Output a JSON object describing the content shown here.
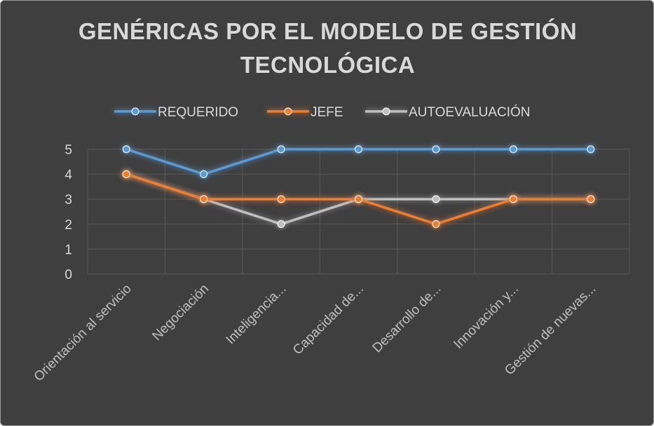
{
  "chart_data": {
    "type": "line",
    "title_lines": [
      "GENÉRICAS POR EL MODELO DE GESTIÓN",
      "TECNOLÓGICA"
    ],
    "categories": [
      "Orientación al servicio",
      "Negociación",
      "Inteligencia...",
      "Capacidad de...",
      "Desarrollo de...",
      "Innovación y...",
      "Gestión de nuevas..."
    ],
    "series": [
      {
        "name": "REQUERIDO",
        "color": "#5b9bd5",
        "values": [
          5,
          4,
          5,
          5,
          5,
          5,
          5
        ]
      },
      {
        "name": "JEFE",
        "color": "#ed7d31",
        "values": [
          4,
          3,
          3,
          3,
          2,
          3,
          3
        ]
      },
      {
        "name": "AUTOEVALUACIÓN",
        "color": "#bfbfbf",
        "values": [
          4,
          3,
          2,
          3,
          3,
          3,
          3
        ]
      }
    ],
    "ylim": [
      0,
      5
    ],
    "yticks": [
      "0",
      "1",
      "2",
      "3",
      "4",
      "5"
    ],
    "grid": true,
    "legend_position": "top"
  }
}
